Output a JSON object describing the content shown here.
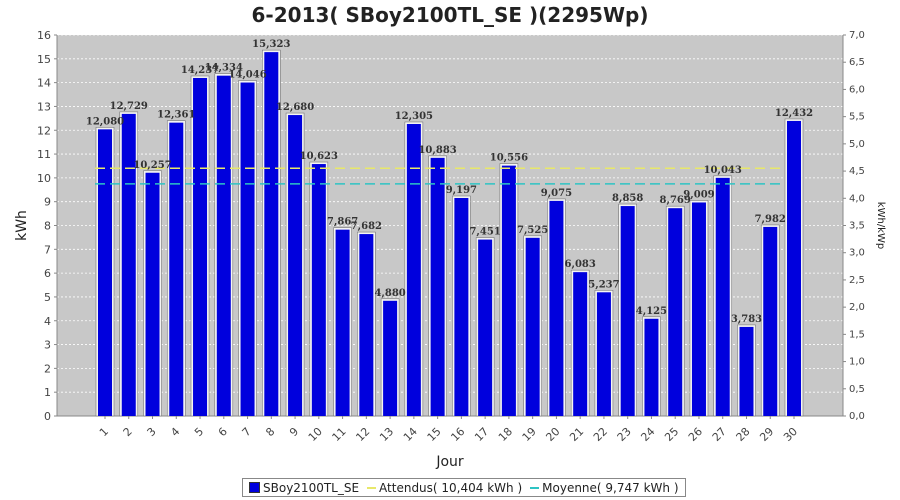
{
  "chart_data": {
    "type": "bar",
    "title": "6-2013( SBoy2100TL_SE )(2295Wp)",
    "xlabel": "Jour",
    "ylabel": "kWh",
    "ylabel_right": "kWh/kWp",
    "ylim": [
      0,
      16
    ],
    "ylim_right": [
      0,
      7.0
    ],
    "y_ticks": [
      "0",
      "1",
      "2",
      "3",
      "4",
      "5",
      "6",
      "7",
      "8",
      "9",
      "10",
      "11",
      "12",
      "13",
      "14",
      "15",
      "16"
    ],
    "y_ticks_right": [
      "0,0",
      "0,5",
      "1,0",
      "1,5",
      "2,0",
      "2,5",
      "3,0",
      "3,5",
      "4,0",
      "4,5",
      "5,0",
      "5,5",
      "6,0",
      "6,5",
      "7,0"
    ],
    "categories": [
      "1",
      "2",
      "3",
      "4",
      "5",
      "6",
      "7",
      "8",
      "9",
      "10",
      "11",
      "12",
      "13",
      "14",
      "15",
      "16",
      "17",
      "18",
      "19",
      "20",
      "21",
      "22",
      "23",
      "24",
      "25",
      "26",
      "27",
      "28",
      "29",
      "30"
    ],
    "series": [
      {
        "name": "SBoy2100TL_SE",
        "color": "#0000dd",
        "values": [
          12.08,
          12.729,
          10.257,
          12.361,
          14.237,
          14.334,
          14.046,
          15.323,
          12.68,
          10.623,
          7.867,
          7.682,
          4.88,
          12.305,
          10.883,
          9.197,
          7.451,
          10.556,
          7.525,
          9.075,
          6.083,
          5.237,
          8.858,
          4.125,
          8.769,
          9.009,
          10.043,
          3.783,
          7.982,
          12.432
        ],
        "labels": [
          "12,080",
          "12,729",
          "10,257",
          "12,361",
          "14,237",
          "14,334",
          "14,046",
          "15,323",
          "12,680",
          "10,623",
          "7,867",
          "7,682",
          "4,880",
          "12,305",
          "10,883",
          "9,197",
          "7,451",
          "10,556",
          "7,525",
          "9,075",
          "6,083",
          "5,237",
          "8,858",
          "4,125",
          "8,769",
          "9,009",
          "10,043",
          "3,783",
          "7,982",
          "12,432"
        ]
      }
    ],
    "reference_lines": [
      {
        "name": "Attendus( 10,404 kWh )",
        "value": 10.404,
        "color": "#e8e86a",
        "style": "dashed"
      },
      {
        "name": "Moyenne( 9,747 kWh )",
        "value": 9.747,
        "color": "#2ec4c4",
        "style": "dashed"
      }
    ],
    "grid": true,
    "legend_position": "bottom"
  }
}
